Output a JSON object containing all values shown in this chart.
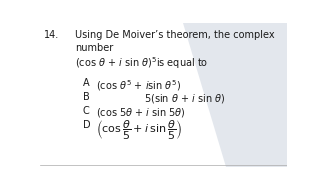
{
  "question_number": "14.",
  "q_line1": "Using De Moiver’s theorem, the complex",
  "q_line2": "number",
  "q_line3": "(cos $\\theta$ + $i$ sin $\\theta$)$^5$is equal to",
  "opt_A_label": "A",
  "opt_A_text": "(cos $\\theta^5$ + $i$sin $\\theta^5$)",
  "opt_B_label": "B",
  "opt_B_text": "5(sin $\\theta$ + $i$ sin $\\theta$)",
  "opt_C_label": "C",
  "opt_C_text": "(cos 5$\\theta$ + $i$ sin 5$\\theta$)",
  "opt_D_label": "D",
  "opt_D_text": "$\\left(\\cos\\dfrac{\\theta}{5} + i\\,\\sin\\dfrac{\\theta}{5}\\right)$",
  "bg_color": "#ffffff",
  "text_color": "#1a1a1a",
  "watermark_color": "#c8d0dc",
  "watermark_alpha": 0.5,
  "fs_main": 7.0,
  "fs_opt": 7.0,
  "fs_D": 7.0
}
